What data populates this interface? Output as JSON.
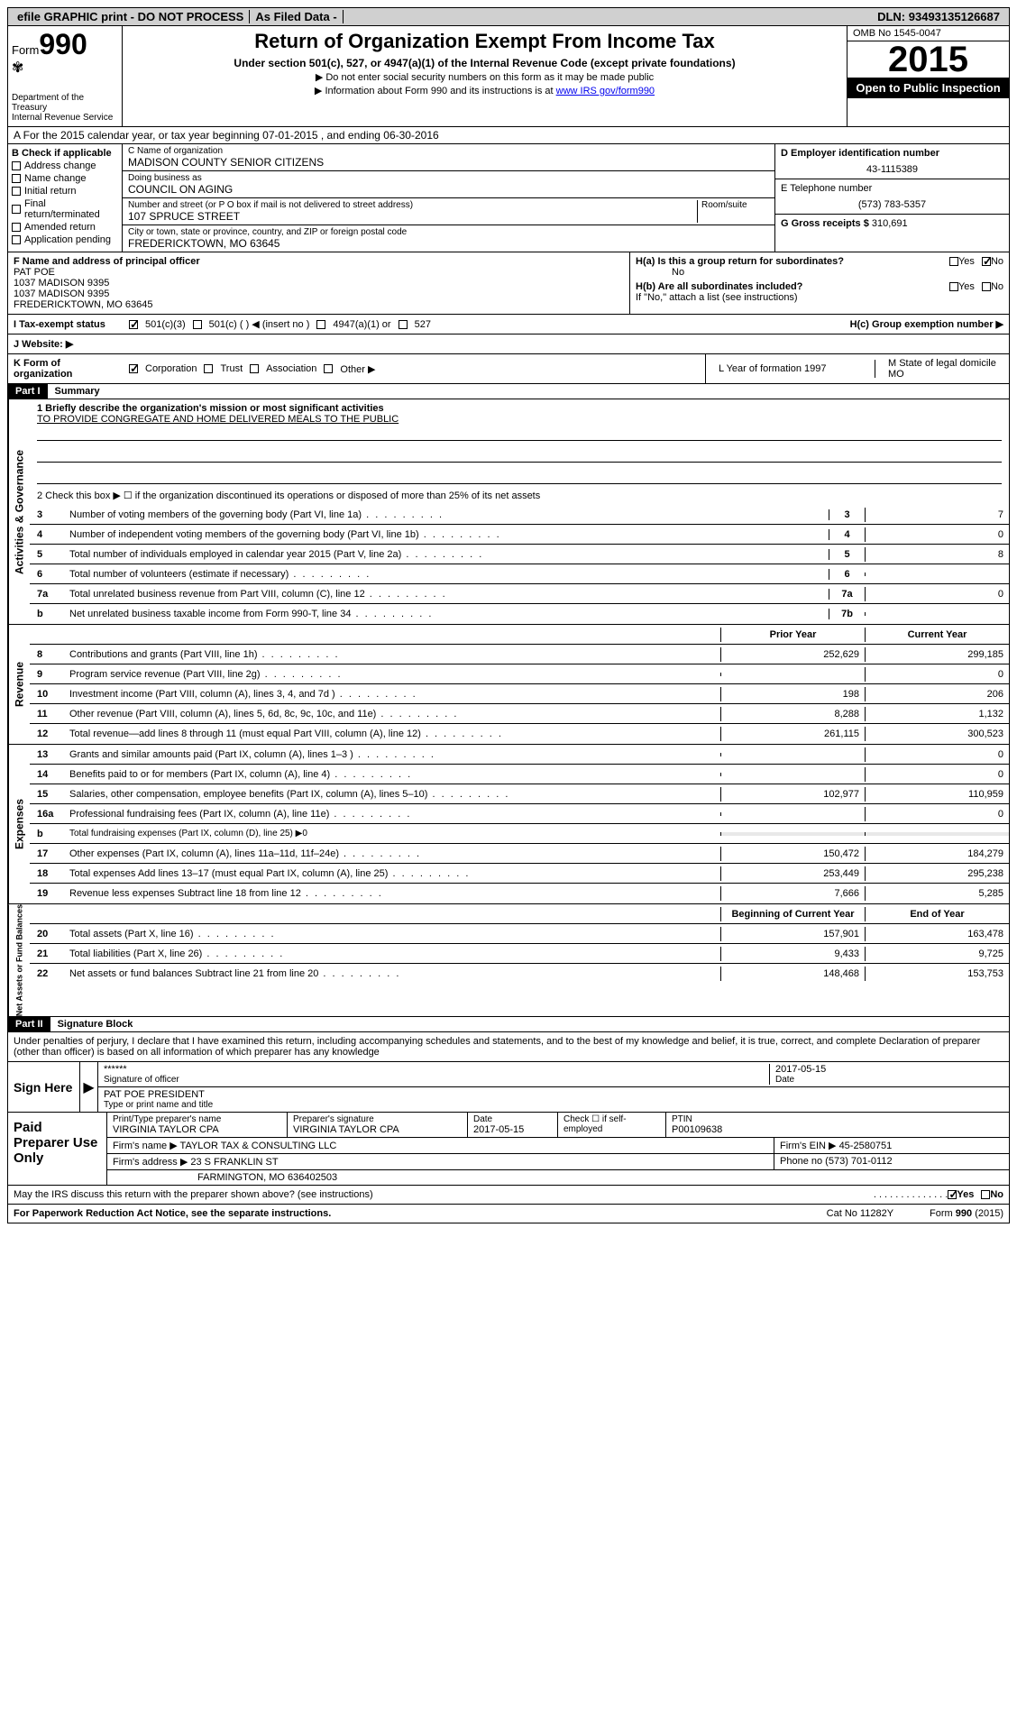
{
  "topbar": {
    "efile": "efile GRAPHIC print - DO NOT PROCESS",
    "asfiled": "As Filed Data -",
    "dln_label": "DLN:",
    "dln": "93493135126687"
  },
  "header": {
    "form_label": "Form",
    "form_num": "990",
    "dept": "Department of the Treasury",
    "irs": "Internal Revenue Service",
    "title": "Return of Organization Exempt From Income Tax",
    "subtitle": "Under section 501(c), 527, or 4947(a)(1) of the Internal Revenue Code (except private foundations)",
    "bullet1": "▶ Do not enter social security numbers on this form as it may be made public",
    "bullet2": "▶ Information about Form 990 and its instructions is at ",
    "link": "www IRS gov/form990",
    "omb": "OMB No 1545-0047",
    "year": "2015",
    "inspect": "Open to Public Inspection"
  },
  "row_a": "A  For the 2015 calendar year, or tax year beginning 07-01-2015     , and ending 06-30-2016",
  "section_b": {
    "label": "B  Check if applicable",
    "items": [
      "Address change",
      "Name change",
      "Initial return",
      "Final return/terminated",
      "Amended return",
      "Application pending"
    ]
  },
  "section_c": {
    "name_label": "C Name of organization",
    "name": "MADISON COUNTY SENIOR CITIZENS",
    "dba_label": "Doing business as",
    "dba": "COUNCIL ON AGING",
    "street_label": "Number and street (or P O box if mail is not delivered to street address)",
    "room_label": "Room/suite",
    "street": "107 SPRUCE STREET",
    "city_label": "City or town, state or province, country, and ZIP or foreign postal code",
    "city": "FREDERICKTOWN, MO  63645"
  },
  "section_d": {
    "label": "D Employer identification number",
    "ein": "43-1115389",
    "tel_label": "E Telephone number",
    "tel": "(573) 783-5357",
    "gross_label": "G Gross receipts $",
    "gross": "310,691"
  },
  "section_f": {
    "label": "F  Name and address of principal officer",
    "line1": "PAT POE",
    "line2": "1037 MADISON 9395",
    "line3": "1037 MADISON 9395",
    "line4": "FREDERICKTOWN, MO  63645"
  },
  "section_h": {
    "ha": "H(a)  Is this a group return for subordinates?",
    "ha_no": "No",
    "hb": "H(b)  Are all subordinates included?",
    "hb_note": "If \"No,\" attach a list  (see instructions)",
    "hc": "H(c)  Group exemption number ▶",
    "yes": "Yes",
    "no": "No"
  },
  "row_i": {
    "label": "I   Tax-exempt status",
    "opts": [
      "501(c)(3)",
      "501(c) (  ) ◀ (insert no )",
      "4947(a)(1) or",
      "527"
    ]
  },
  "row_j": {
    "label": "J   Website: ▶"
  },
  "row_k": {
    "label": "K Form of organization",
    "opts": [
      "Corporation",
      "Trust",
      "Association",
      "Other ▶"
    ]
  },
  "row_l": {
    "label": "L Year of formation  1997"
  },
  "row_m": {
    "label": "M State of legal domicile",
    "val": "MO"
  },
  "part1": {
    "hdr": "Part I",
    "title": "Summary",
    "q1": "1 Briefly describe the organization's mission or most significant activities",
    "mission": "TO PROVIDE CONGREGATE AND HOME DELIVERED MEALS TO THE PUBLIC",
    "q2": "2  Check this box ▶ ☐ if the organization discontinued its operations or disposed of more than 25% of its net assets",
    "side_gov": "Activities & Governance",
    "side_rev": "Revenue",
    "side_exp": "Expenses",
    "side_net": "Net Assets or Fund Balances",
    "prior_hdr": "Prior Year",
    "current_hdr": "Current Year",
    "begin_hdr": "Beginning of Current Year",
    "end_hdr": "End of Year",
    "lines_gov": [
      {
        "n": "3",
        "t": "Number of voting members of the governing body (Part VI, line 1a)",
        "b": "3",
        "v": "7"
      },
      {
        "n": "4",
        "t": "Number of independent voting members of the governing body (Part VI, line 1b)",
        "b": "4",
        "v": "0"
      },
      {
        "n": "5",
        "t": "Total number of individuals employed in calendar year 2015 (Part V, line 2a)",
        "b": "5",
        "v": "8"
      },
      {
        "n": "6",
        "t": "Total number of volunteers (estimate if necessary)",
        "b": "6",
        "v": ""
      },
      {
        "n": "7a",
        "t": "Total unrelated business revenue from Part VIII, column (C), line 12",
        "b": "7a",
        "v": "0"
      },
      {
        "n": "b",
        "t": "Net unrelated business taxable income from Form 990-T, line 34",
        "b": "7b",
        "v": ""
      }
    ],
    "lines_rev": [
      {
        "n": "8",
        "t": "Contributions and grants (Part VIII, line 1h)",
        "p": "252,629",
        "c": "299,185"
      },
      {
        "n": "9",
        "t": "Program service revenue (Part VIII, line 2g)",
        "p": "",
        "c": "0"
      },
      {
        "n": "10",
        "t": "Investment income (Part VIII, column (A), lines 3, 4, and 7d )",
        "p": "198",
        "c": "206"
      },
      {
        "n": "11",
        "t": "Other revenue (Part VIII, column (A), lines 5, 6d, 8c, 9c, 10c, and 11e)",
        "p": "8,288",
        "c": "1,132"
      },
      {
        "n": "12",
        "t": "Total revenue—add lines 8 through 11 (must equal Part VIII, column (A), line 12)",
        "p": "261,115",
        "c": "300,523"
      }
    ],
    "lines_exp": [
      {
        "n": "13",
        "t": "Grants and similar amounts paid (Part IX, column (A), lines 1–3 )",
        "p": "",
        "c": "0"
      },
      {
        "n": "14",
        "t": "Benefits paid to or for members (Part IX, column (A), line 4)",
        "p": "",
        "c": "0"
      },
      {
        "n": "15",
        "t": "Salaries, other compensation, employee benefits (Part IX, column (A), lines 5–10)",
        "p": "102,977",
        "c": "110,959"
      },
      {
        "n": "16a",
        "t": "Professional fundraising fees (Part IX, column (A), line 11e)",
        "p": "",
        "c": "0"
      },
      {
        "n": "b",
        "t": "Total fundraising expenses (Part IX, column (D), line 25) ▶0",
        "p": "",
        "c": ""
      },
      {
        "n": "17",
        "t": "Other expenses (Part IX, column (A), lines 11a–11d, 11f–24e)",
        "p": "150,472",
        "c": "184,279"
      },
      {
        "n": "18",
        "t": "Total expenses  Add lines 13–17 (must equal Part IX, column (A), line 25)",
        "p": "253,449",
        "c": "295,238"
      },
      {
        "n": "19",
        "t": "Revenue less expenses  Subtract line 18 from line 12",
        "p": "7,666",
        "c": "5,285"
      }
    ],
    "lines_net": [
      {
        "n": "20",
        "t": "Total assets (Part X, line 16)",
        "p": "157,901",
        "c": "163,478"
      },
      {
        "n": "21",
        "t": "Total liabilities (Part X, line 26)",
        "p": "9,433",
        "c": "9,725"
      },
      {
        "n": "22",
        "t": "Net assets or fund balances  Subtract line 21 from line 20",
        "p": "148,468",
        "c": "153,753"
      }
    ]
  },
  "part2": {
    "hdr": "Part II",
    "title": "Signature Block",
    "decl": "Under penalties of perjury, I declare that I have examined this return, including accompanying schedules and statements, and to the best of my knowledge and belief, it is true, correct, and complete  Declaration of preparer (other than officer) is based on all information of which preparer has any knowledge",
    "sign_here": "Sign Here",
    "sig_stars": "******",
    "sig_date": "2017-05-15",
    "sig_of_officer": "Signature of officer",
    "date_label": "Date",
    "officer_name": "PAT POE PRESIDENT",
    "type_name": "Type or print name and title",
    "paid": "Paid Preparer Use Only",
    "prep_name_label": "Print/Type preparer's name",
    "prep_name": "VIRGINIA TAYLOR CPA",
    "prep_sig_label": "Preparer's signature",
    "prep_sig": "VIRGINIA TAYLOR CPA",
    "prep_date_label": "Date",
    "prep_date": "2017-05-15",
    "check_if": "Check ☐ if self-employed",
    "ptin_label": "PTIN",
    "ptin": "P00109638",
    "firm_name_label": "Firm's name      ▶",
    "firm_name": "TAYLOR TAX & CONSULTING LLC",
    "firm_ein_label": "Firm's EIN ▶",
    "firm_ein": "45-2580751",
    "firm_addr_label": "Firm's address ▶",
    "firm_addr1": "23 S FRANKLIN ST",
    "firm_addr2": "FARMINGTON, MO  636402503",
    "phone_label": "Phone no",
    "phone": "(573) 701-0112",
    "may_irs": "May the IRS discuss this return with the preparer shown above? (see instructions)"
  },
  "footer": {
    "left": "For Paperwork Reduction Act Notice, see the separate instructions.",
    "mid": "Cat No  11282Y",
    "right": "Form 990 (2015)"
  }
}
